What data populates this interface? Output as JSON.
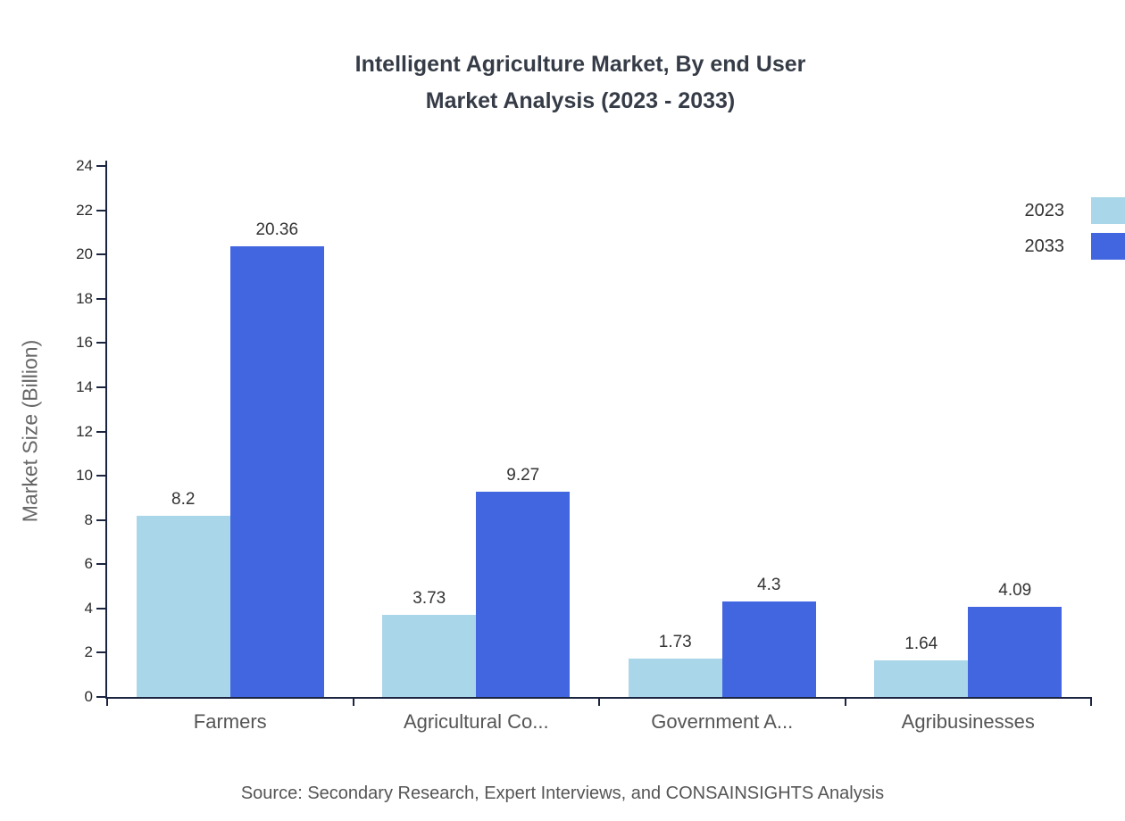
{
  "title": {
    "line1": "Intelligent Agriculture Market, By end User",
    "line2": "Market Analysis (2023 - 2033)"
  },
  "source": "Source: Secondary Research, Expert Interviews, and CONSAINSIGHTS Analysis",
  "chart_data": {
    "type": "bar",
    "title": "Intelligent Agriculture Market, By end User Market Analysis (2023 - 2033)",
    "categories": [
      "Farmers",
      "Agricultural Co...",
      "Government A...",
      "Agribusinesses"
    ],
    "series": [
      {
        "name": "2023",
        "color": "#a9d6e8",
        "values": [
          8.2,
          3.73,
          1.73,
          1.64
        ]
      },
      {
        "name": "2033",
        "color": "#4266e0",
        "values": [
          20.36,
          9.27,
          4.3,
          4.09
        ]
      }
    ],
    "xlabel": "",
    "ylabel": "Market Size (Billion)",
    "ylim": [
      0,
      24
    ],
    "ytick_step": 2,
    "grid": false,
    "legend_position": "top-right"
  }
}
